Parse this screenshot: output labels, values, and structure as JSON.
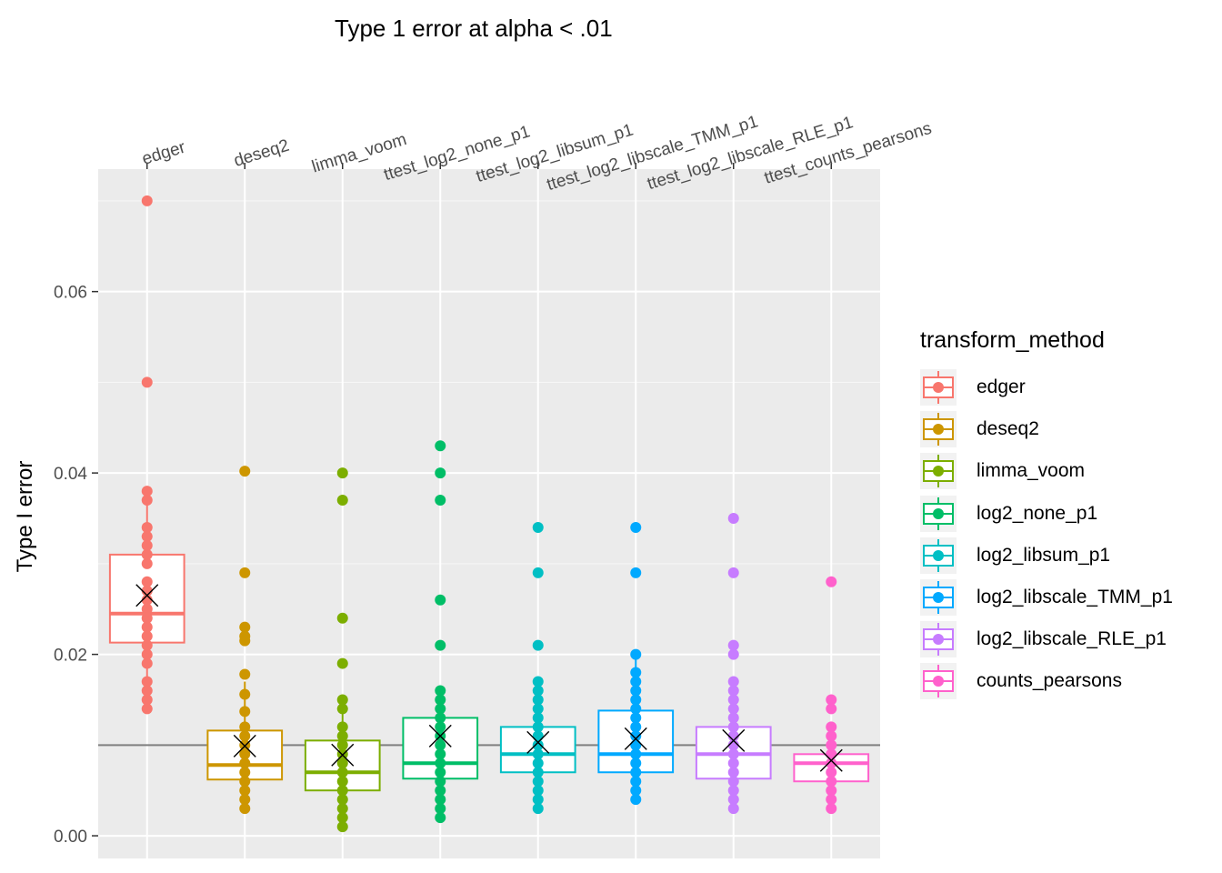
{
  "chart_data": {
    "type": "boxplot",
    "title": "Type 1 error at alpha < .01",
    "ylabel": "Type I error",
    "xlabel": "",
    "x_axis_position": "top",
    "ylim": [
      -0.0025,
      0.0735
    ],
    "yticks": [
      0.0,
      0.02,
      0.04,
      0.06
    ],
    "ytick_labels": [
      "0.00",
      "0.02",
      "0.04",
      "0.06"
    ],
    "reference_line": 0.01,
    "grid": true,
    "legend": {
      "title": "transform_method",
      "placement": "right",
      "entries": [
        "edger",
        "deseq2",
        "limma_voom",
        "log2_none_p1",
        "log2_libsum_p1",
        "log2_libscale_TMM_p1",
        "log2_libscale_RLE_p1",
        "counts_pearsons"
      ]
    },
    "categories": [
      "edger",
      "deseq2",
      "limma_voom",
      "ttest_log2_none_p1",
      "ttest_log2_libsum_p1",
      "ttest_log2_libscale_TMM_p1",
      "ttest_log2_libscale_RLE_p1",
      "ttest_counts_pearsons"
    ],
    "series": [
      {
        "name": "edger",
        "color": "#F8766D",
        "q1": 0.0213,
        "median": 0.0245,
        "q3": 0.031,
        "whisker_low": 0.014,
        "whisker_high": 0.038,
        "mean": 0.0265,
        "points": [
          0.07,
          0.05,
          0.038,
          0.037,
          0.034,
          0.033,
          0.032,
          0.031,
          0.03,
          0.028,
          0.027,
          0.026,
          0.025,
          0.024,
          0.023,
          0.022,
          0.021,
          0.02,
          0.019,
          0.017,
          0.016,
          0.015,
          0.014
        ]
      },
      {
        "name": "deseq2",
        "color": "#CD9600",
        "q1": 0.0062,
        "median": 0.0078,
        "q3": 0.0116,
        "whisker_low": 0.003,
        "whisker_high": 0.017,
        "mean": 0.0099,
        "points": [
          0.0402,
          0.029,
          0.023,
          0.022,
          0.0215,
          0.0178,
          0.0156,
          0.0137,
          0.012,
          0.011,
          0.01,
          0.009,
          0.008,
          0.007,
          0.006,
          0.005,
          0.004,
          0.003
        ]
      },
      {
        "name": "limma_voom",
        "color": "#7CAE00",
        "q1": 0.005,
        "median": 0.007,
        "q3": 0.0105,
        "whisker_low": 0.001,
        "whisker_high": 0.015,
        "mean": 0.0089,
        "points": [
          0.04,
          0.037,
          0.024,
          0.019,
          0.015,
          0.014,
          0.012,
          0.011,
          0.01,
          0.009,
          0.008,
          0.007,
          0.006,
          0.005,
          0.004,
          0.003,
          0.002,
          0.001
        ]
      },
      {
        "name": "log2_none_p1",
        "color": "#00BE67",
        "q1": 0.0063,
        "median": 0.008,
        "q3": 0.013,
        "whisker_low": 0.002,
        "whisker_high": 0.016,
        "mean": 0.011,
        "points": [
          0.043,
          0.04,
          0.037,
          0.026,
          0.021,
          0.016,
          0.015,
          0.014,
          0.013,
          0.012,
          0.011,
          0.01,
          0.009,
          0.008,
          0.007,
          0.006,
          0.005,
          0.004,
          0.003,
          0.002
        ]
      },
      {
        "name": "log2_libsum_p1",
        "color": "#00BFC4",
        "q1": 0.007,
        "median": 0.009,
        "q3": 0.012,
        "whisker_low": 0.003,
        "whisker_high": 0.017,
        "mean": 0.0103,
        "points": [
          0.034,
          0.029,
          0.021,
          0.017,
          0.016,
          0.015,
          0.014,
          0.013,
          0.012,
          0.011,
          0.01,
          0.009,
          0.008,
          0.007,
          0.006,
          0.005,
          0.004,
          0.003
        ]
      },
      {
        "name": "log2_libscale_TMM_p1",
        "color": "#00A9FF",
        "q1": 0.007,
        "median": 0.009,
        "q3": 0.0138,
        "whisker_low": 0.004,
        "whisker_high": 0.02,
        "mean": 0.0107,
        "points": [
          0.034,
          0.029,
          0.02,
          0.018,
          0.017,
          0.016,
          0.015,
          0.014,
          0.013,
          0.012,
          0.011,
          0.01,
          0.009,
          0.008,
          0.007,
          0.006,
          0.005,
          0.004
        ]
      },
      {
        "name": "log2_libscale_RLE_p1",
        "color": "#C77CFF",
        "q1": 0.0063,
        "median": 0.009,
        "q3": 0.012,
        "whisker_low": 0.003,
        "whisker_high": 0.017,
        "mean": 0.0105,
        "points": [
          0.035,
          0.029,
          0.021,
          0.02,
          0.017,
          0.016,
          0.015,
          0.014,
          0.013,
          0.012,
          0.011,
          0.01,
          0.009,
          0.008,
          0.007,
          0.006,
          0.005,
          0.004,
          0.003
        ]
      },
      {
        "name": "counts_pearsons",
        "color": "#FF61CC",
        "q1": 0.006,
        "median": 0.008,
        "q3": 0.009,
        "whisker_low": 0.003,
        "whisker_high": 0.012,
        "mean": 0.0083,
        "points": [
          0.028,
          0.015,
          0.014,
          0.012,
          0.011,
          0.01,
          0.009,
          0.008,
          0.007,
          0.006,
          0.005,
          0.004,
          0.003
        ]
      }
    ]
  }
}
